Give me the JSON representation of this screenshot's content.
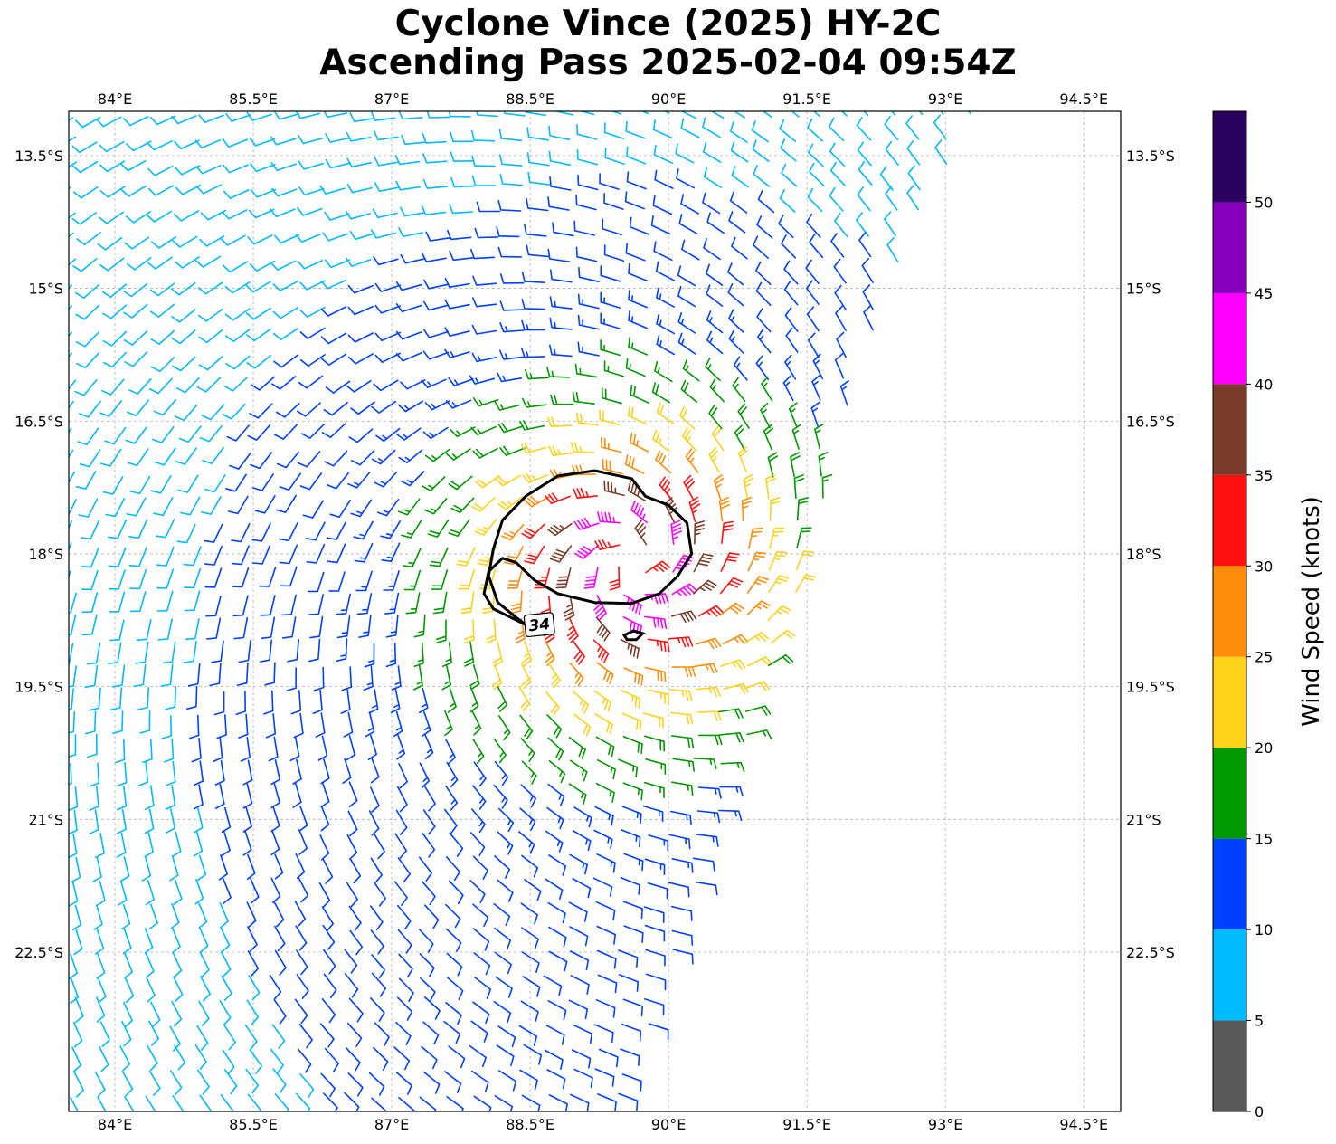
{
  "title": {
    "line1": "Cyclone Vince (2025) HY-2C",
    "line2": "Ascending Pass 2025-02-04 09:54Z"
  },
  "map": {
    "lon_range": [
      83.5,
      94.9
    ],
    "lat_range": [
      -24.3,
      -13.0
    ],
    "lon_ticks": [
      {
        "value": 84.0,
        "label": "84°E"
      },
      {
        "value": 85.5,
        "label": "85.5°E"
      },
      {
        "value": 87.0,
        "label": "87°E"
      },
      {
        "value": 88.5,
        "label": "88.5°E"
      },
      {
        "value": 90.0,
        "label": "90°E"
      },
      {
        "value": 91.5,
        "label": "91.5°E"
      },
      {
        "value": 93.0,
        "label": "93°E"
      },
      {
        "value": 94.5,
        "label": "94.5°E"
      }
    ],
    "lat_ticks": [
      {
        "value": -13.5,
        "label": "13.5°S"
      },
      {
        "value": -15.0,
        "label": "15°S"
      },
      {
        "value": -16.5,
        "label": "16.5°S"
      },
      {
        "value": -18.0,
        "label": "18°S"
      },
      {
        "value": -19.5,
        "label": "19.5°S"
      },
      {
        "value": -21.0,
        "label": "21°S"
      },
      {
        "value": -22.5,
        "label": "22.5°S"
      }
    ],
    "storm_center": {
      "lon": 89.6,
      "lat": -18.1
    },
    "contour": {
      "level_label": "34",
      "color": "#000000",
      "main_ring": [
        [
          89.2,
          -17.06
        ],
        [
          88.8,
          -17.12
        ],
        [
          88.45,
          -17.35
        ],
        [
          88.2,
          -17.62
        ],
        [
          88.1,
          -17.95
        ],
        [
          88.05,
          -18.25
        ],
        [
          88.15,
          -18.55
        ],
        [
          88.35,
          -18.72
        ],
        [
          88.45,
          -18.8
        ]
      ],
      "inner_ring": [
        [
          88.45,
          -18.8
        ],
        [
          88.1,
          -18.62
        ],
        [
          88.0,
          -18.45
        ],
        [
          88.05,
          -18.2
        ],
        [
          88.2,
          -18.05
        ],
        [
          88.35,
          -18.1
        ],
        [
          88.55,
          -18.3
        ],
        [
          88.8,
          -18.45
        ],
        [
          89.2,
          -18.55
        ],
        [
          89.6,
          -18.56
        ],
        [
          89.9,
          -18.45
        ],
        [
          90.1,
          -18.25
        ],
        [
          90.25,
          -18.0
        ],
        [
          90.2,
          -17.65
        ],
        [
          90.0,
          -17.45
        ],
        [
          89.75,
          -17.35
        ],
        [
          89.6,
          -17.15
        ],
        [
          89.2,
          -17.06
        ]
      ],
      "small_ring": [
        [
          89.52,
          -18.92
        ],
        [
          89.62,
          -18.87
        ],
        [
          89.72,
          -18.9
        ],
        [
          89.65,
          -18.97
        ],
        [
          89.55,
          -18.97
        ],
        [
          89.52,
          -18.92
        ]
      ],
      "label_pos": {
        "lon": 88.6,
        "lat": -18.8
      }
    },
    "swath": {
      "west_lon": 83.5,
      "east_edge_top": {
        "lon": 93.3,
        "lat": -13.0
      },
      "east_edge_mid": {
        "lon": 92.0,
        "lat": -16.0
      },
      "east_edge_low": {
        "lon": 91.5,
        "lat": -18.3
      },
      "east_edge_bottom": {
        "lon": 89.5,
        "lat": -24.3
      }
    },
    "wind_model": {
      "peak_kt": 44,
      "rmw_deg": 0.45,
      "decay": 0.42,
      "background_kt": 9,
      "grid_step_deg": 0.27
    }
  },
  "colorbar": {
    "label": "Wind Speed (knots)",
    "max": 55,
    "bins": [
      {
        "from": 0,
        "to": 5,
        "color": "#595959"
      },
      {
        "from": 5,
        "to": 10,
        "color": "#00bbff"
      },
      {
        "from": 10,
        "to": 15,
        "color": "#0040ff"
      },
      {
        "from": 15,
        "to": 20,
        "color": "#009900"
      },
      {
        "from": 20,
        "to": 25,
        "color": "#ffd21a"
      },
      {
        "from": 25,
        "to": 30,
        "color": "#ff8c0a"
      },
      {
        "from": 30,
        "to": 35,
        "color": "#ff1111"
      },
      {
        "from": 35,
        "to": 40,
        "color": "#7a3c28"
      },
      {
        "from": 40,
        "to": 45,
        "color": "#ff00ff"
      },
      {
        "from": 45,
        "to": 50,
        "color": "#8800bb"
      },
      {
        "from": 50,
        "to": 55,
        "color": "#2a0060"
      }
    ],
    "ticks": [
      {
        "value": 0,
        "label": "0"
      },
      {
        "value": 5,
        "label": "5"
      },
      {
        "value": 10,
        "label": "10"
      },
      {
        "value": 15,
        "label": "15"
      },
      {
        "value": 20,
        "label": "20"
      },
      {
        "value": 25,
        "label": "25"
      },
      {
        "value": 30,
        "label": "30"
      },
      {
        "value": 35,
        "label": "35"
      },
      {
        "value": 40,
        "label": "40"
      },
      {
        "value": 45,
        "label": "45"
      },
      {
        "value": 50,
        "label": "50"
      }
    ]
  }
}
